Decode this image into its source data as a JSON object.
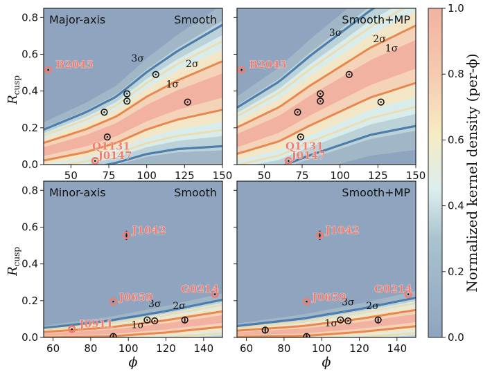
{
  "chart_data": {
    "type": "heatmap",
    "colorbar": {
      "title": "Normalized kernel density (per-ϕ)",
      "ticks": [
        0.0,
        0.2,
        0.4,
        0.6,
        0.8,
        1.0
      ],
      "tick_labels": [
        "0.0",
        "0.2",
        "0.4",
        "0.6",
        "0.8",
        "1.0"
      ],
      "range": [
        0,
        1
      ]
    },
    "ylabel": "R_cusp",
    "xlabel": "ϕ",
    "panels": [
      {
        "id": "top-left",
        "label_left": "Major-axis",
        "label_right": "Smooth",
        "xlim": [
          32,
          150
        ],
        "ylim": [
          0,
          0.85
        ],
        "xticks": [
          50,
          75,
          100,
          125,
          150
        ],
        "yticks": [
          0.0,
          0.2,
          0.4,
          0.6,
          0.8
        ],
        "ridge": [
          [
            32,
            0.07
          ],
          [
            60,
            0.13
          ],
          [
            80,
            0.19
          ],
          [
            100,
            0.28
          ],
          [
            120,
            0.35
          ],
          [
            150,
            0.43
          ]
        ],
        "width": [
          [
            32,
            0.04
          ],
          [
            80,
            0.06
          ],
          [
            150,
            0.11
          ]
        ],
        "contour_labels": [
          {
            "text": "3σ",
            "x": 94,
            "y": 0.56
          },
          {
            "text": "2σ",
            "x": 130,
            "y": 0.53
          },
          {
            "text": "1σ",
            "x": 117,
            "y": 0.42
          }
        ],
        "observed": [
          {
            "x": 72,
            "y": 0.285,
            "yerr": 0
          },
          {
            "x": 74,
            "y": 0.15,
            "yerr": 0
          },
          {
            "x": 87,
            "y": 0.385,
            "yerr": 0
          },
          {
            "x": 87,
            "y": 0.345,
            "yerr": 0
          },
          {
            "x": 106,
            "y": 0.49,
            "yerr": 0
          },
          {
            "x": 127,
            "y": 0.34,
            "yerr": 0
          }
        ],
        "outliers": [
          {
            "name": "B2045",
            "x": 35,
            "y": 0.515,
            "lx": 40,
            "ly": 0.525
          },
          {
            "name": "Q1131",
            "x": 66,
            "y": 0.02,
            "lx": 64,
            "ly": 0.08
          },
          {
            "name": "J0147",
            "x": 66,
            "y": 0.02,
            "lx": 68,
            "ly": 0.03
          }
        ]
      },
      {
        "id": "top-right",
        "label_left": "",
        "label_right": "Smooth+MP",
        "xlim": [
          32,
          150
        ],
        "ylim": [
          0,
          0.85
        ],
        "xticks": [
          50,
          75,
          100,
          125,
          150
        ],
        "yticks": [
          0.0,
          0.2,
          0.4,
          0.6,
          0.8
        ],
        "ridge": [
          [
            32,
            0.13
          ],
          [
            60,
            0.22
          ],
          [
            80,
            0.32
          ],
          [
            100,
            0.41
          ],
          [
            120,
            0.5
          ],
          [
            150,
            0.6
          ]
        ],
        "width": [
          [
            32,
            0.06
          ],
          [
            80,
            0.09
          ],
          [
            150,
            0.13
          ]
        ],
        "contour_labels": [
          {
            "text": "3σ",
            "x": 97,
            "y": 0.7
          },
          {
            "text": "2σ",
            "x": 126,
            "y": 0.665
          },
          {
            "text": "1σ",
            "x": 134,
            "y": 0.615
          }
        ],
        "observed": [
          {
            "x": 72,
            "y": 0.285,
            "yerr": 0
          },
          {
            "x": 74,
            "y": 0.15,
            "yerr": 0
          },
          {
            "x": 87,
            "y": 0.385,
            "yerr": 0
          },
          {
            "x": 87,
            "y": 0.345,
            "yerr": 0
          },
          {
            "x": 106,
            "y": 0.49,
            "yerr": 0
          },
          {
            "x": 127,
            "y": 0.34,
            "yerr": 0
          }
        ],
        "outliers": [
          {
            "name": "B2045",
            "x": 35,
            "y": 0.515,
            "lx": 40,
            "ly": 0.525
          },
          {
            "name": "Q1131",
            "x": 66,
            "y": 0.02,
            "lx": 64,
            "ly": 0.08
          },
          {
            "name": "J0147",
            "x": 66,
            "y": 0.02,
            "lx": 68,
            "ly": 0.03
          }
        ]
      },
      {
        "id": "bottom-left",
        "label_left": "Minor-axis",
        "label_right": "Smooth",
        "xlim": [
          55,
          150
        ],
        "ylim": [
          0,
          0.85
        ],
        "xticks": [
          60,
          80,
          100,
          120,
          140
        ],
        "yticks": [
          0.0,
          0.2,
          0.4,
          0.6,
          0.8
        ],
        "ridge": [
          [
            55,
            0.015
          ],
          [
            90,
            0.03
          ],
          [
            120,
            0.06
          ],
          [
            150,
            0.1
          ]
        ],
        "width": [
          [
            55,
            0.012
          ],
          [
            150,
            0.035
          ]
        ],
        "contour_labels": [
          {
            "text": "3σ",
            "x": 114,
            "y": 0.165
          },
          {
            "text": "2σ",
            "x": 127,
            "y": 0.155
          },
          {
            "text": "1σ",
            "x": 105,
            "y": 0.05
          }
        ],
        "observed": [
          {
            "x": 92,
            "y": 0.005,
            "yerr": 0.015
          },
          {
            "x": 110,
            "y": 0.095,
            "yerr": 0
          },
          {
            "x": 114,
            "y": 0.09,
            "yerr": 0
          },
          {
            "x": 130,
            "y": 0.095,
            "yerr": 0.012
          }
        ],
        "outliers": [
          {
            "name": "J1042",
            "x": 99,
            "y": 0.555,
            "yerr": 0.025,
            "lx": 102,
            "ly": 0.565
          },
          {
            "name": "J0659",
            "x": 92,
            "y": 0.195,
            "yerr": 0,
            "lx": 95,
            "ly": 0.2
          },
          {
            "name": "G0214",
            "x": 146,
            "y": 0.235,
            "yerr": 0,
            "lx": 128,
            "ly": 0.245
          },
          {
            "name": "J0911",
            "x": 70,
            "y": 0.045,
            "yerr": 0,
            "lx": 74,
            "ly": 0.055
          }
        ]
      },
      {
        "id": "bottom-right",
        "label_left": "",
        "label_right": "Smooth+MP",
        "xlim": [
          55,
          150
        ],
        "ylim": [
          0,
          0.85
        ],
        "xticks": [
          60,
          80,
          100,
          120,
          140
        ],
        "yticks": [
          0.0,
          0.2,
          0.4,
          0.6,
          0.8
        ],
        "ridge": [
          [
            55,
            0.02
          ],
          [
            90,
            0.035
          ],
          [
            120,
            0.065
          ],
          [
            150,
            0.105
          ]
        ],
        "width": [
          [
            55,
            0.014
          ],
          [
            150,
            0.037
          ]
        ],
        "contour_labels": [
          {
            "text": "3σ",
            "x": 114,
            "y": 0.175
          },
          {
            "text": "2σ",
            "x": 127,
            "y": 0.155
          },
          {
            "text": "1σ",
            "x": 105,
            "y": 0.06
          }
        ],
        "observed": [
          {
            "x": 70,
            "y": 0.04,
            "yerr": 0.015
          },
          {
            "x": 92,
            "y": 0.005,
            "yerr": 0.015
          },
          {
            "x": 110,
            "y": 0.095,
            "yerr": 0
          },
          {
            "x": 114,
            "y": 0.09,
            "yerr": 0
          },
          {
            "x": 130,
            "y": 0.095,
            "yerr": 0.012
          }
        ],
        "outliers": [
          {
            "name": "J1042",
            "x": 99,
            "y": 0.555,
            "yerr": 0.025,
            "lx": 102,
            "ly": 0.565
          },
          {
            "name": "J0659",
            "x": 92,
            "y": 0.195,
            "yerr": 0,
            "lx": 95,
            "ly": 0.2
          },
          {
            "name": "G0214",
            "x": 146,
            "y": 0.235,
            "yerr": 0,
            "lx": 128,
            "ly": 0.245
          }
        ]
      }
    ]
  },
  "colors": {
    "low": "#8fa5bf",
    "mid": "#dceeee",
    "yellow": "#f6ebc2",
    "high": "#f2b2a2",
    "sigma1": "#e6884f",
    "sigma2": "#ecdcb0",
    "sigma3": "#4e7cab",
    "outlier": "#ef7d70",
    "frame": "#222222"
  }
}
